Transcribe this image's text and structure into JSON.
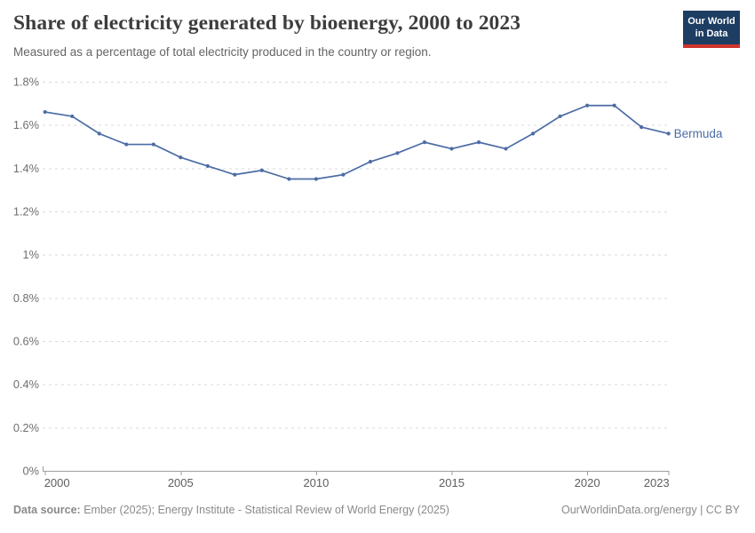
{
  "header": {
    "title": "Share of electricity generated by bioenergy, 2000 to 2023",
    "subtitle": "Measured as a percentage of total electricity produced in the country or region.",
    "logo": {
      "line1": "Our World",
      "line2": "in Data"
    }
  },
  "chart_data": {
    "type": "line",
    "title": "Share of electricity generated by bioenergy, 2000 to 2023",
    "xlabel": "",
    "ylabel": "",
    "unit": "%",
    "grid": true,
    "x": [
      2000,
      2001,
      2002,
      2003,
      2004,
      2005,
      2006,
      2007,
      2008,
      2009,
      2010,
      2011,
      2012,
      2013,
      2014,
      2015,
      2016,
      2017,
      2018,
      2019,
      2020,
      2021,
      2022,
      2023
    ],
    "series": [
      {
        "name": "Bermuda",
        "values": [
          1.66,
          1.64,
          1.56,
          1.51,
          1.51,
          1.45,
          1.41,
          1.37,
          1.39,
          1.35,
          1.35,
          1.37,
          1.43,
          1.47,
          1.52,
          1.49,
          1.52,
          1.49,
          1.56,
          1.64,
          1.69,
          1.69,
          1.59,
          1.56
        ],
        "color": "#4C6CA5"
      }
    ],
    "ylim": [
      0,
      1.8
    ],
    "yticks": [
      {
        "value": 0,
        "label": "0%"
      },
      {
        "value": 0.2,
        "label": "0.2%"
      },
      {
        "value": 0.4,
        "label": "0.4%"
      },
      {
        "value": 0.6,
        "label": "0.6%"
      },
      {
        "value": 0.8,
        "label": "0.8%"
      },
      {
        "value": 1,
        "label": "1%"
      },
      {
        "value": 1.2,
        "label": "1.2%"
      },
      {
        "value": 1.4,
        "label": "1.4%"
      },
      {
        "value": 1.6,
        "label": "1.6%"
      },
      {
        "value": 1.8,
        "label": "1.8%"
      }
    ],
    "xticks": [
      2000,
      2005,
      2010,
      2015,
      2020,
      2023
    ],
    "end_label": "Bermuda",
    "legend_position": "end-of-line"
  },
  "footer": {
    "datasource_label": "Data source:",
    "datasource_text": " Ember (2025); Energy Institute - Statistical Review of World Energy (2025)",
    "credit": "OurWorldinData.org/energy | CC BY"
  },
  "colors": {
    "line": "#4C6CA5",
    "gridline": "#dadada",
    "axis": "#9e9e9e",
    "y_label": "#6f6f6f",
    "x_label": "#5e5e5e",
    "logo_navy": "#1d3d63",
    "logo_red": "#d0342c"
  }
}
